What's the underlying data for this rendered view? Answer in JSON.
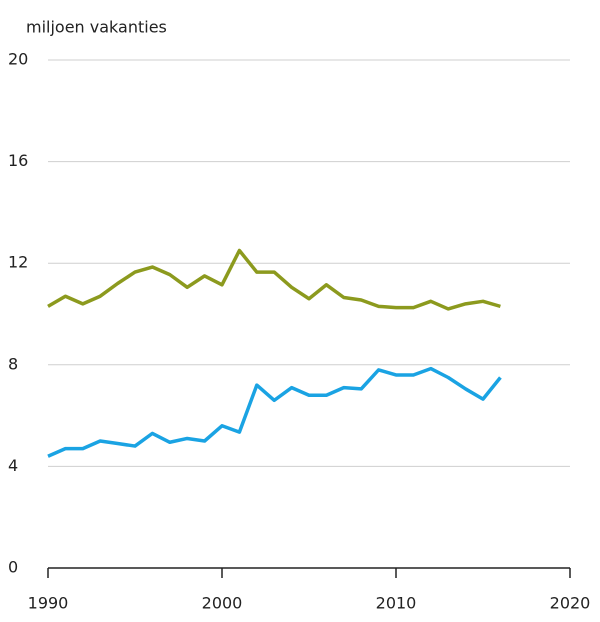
{
  "chart_data": {
    "type": "line",
    "ylabel": "miljoen vakanties",
    "x": [
      1990,
      1991,
      1992,
      1993,
      1994,
      1995,
      1996,
      1997,
      1998,
      1999,
      2000,
      2001,
      2002,
      2003,
      2004,
      2005,
      2006,
      2007,
      2008,
      2009,
      2010,
      2011,
      2012,
      2013,
      2014,
      2015,
      2016
    ],
    "series": [
      {
        "color": "#8c9a1e",
        "values": [
          10.3,
          10.7,
          10.4,
          10.7,
          11.2,
          11.65,
          11.85,
          11.55,
          11.05,
          11.5,
          11.15,
          12.5,
          11.65,
          11.65,
          11.05,
          10.6,
          11.15,
          10.65,
          10.55,
          10.3,
          10.25,
          10.25,
          10.5,
          10.2,
          10.4,
          10.5,
          10.3
        ]
      },
      {
        "color": "#1aa3e3",
        "values": [
          4.4,
          4.7,
          4.7,
          5.0,
          4.9,
          4.8,
          5.3,
          4.95,
          5.1,
          5.0,
          5.6,
          5.35,
          7.2,
          6.6,
          7.1,
          6.8,
          6.8,
          7.1,
          7.05,
          7.8,
          7.6,
          7.6,
          7.85,
          7.5,
          7.05,
          6.65,
          7.5
        ]
      }
    ],
    "xlim": [
      1990,
      2020
    ],
    "xticks": [
      1990,
      2000,
      2010,
      2020
    ],
    "ylim": [
      0,
      20
    ],
    "yticks": [
      0,
      4,
      8,
      12,
      16,
      20
    ],
    "grid": true
  }
}
